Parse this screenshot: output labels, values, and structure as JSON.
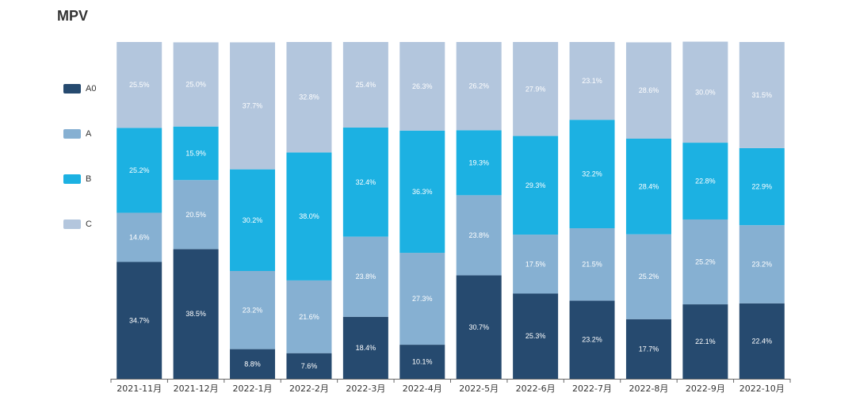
{
  "chart_data": {
    "type": "bar",
    "stacked": true,
    "title": "MPV",
    "categories": [
      "2021-11月",
      "2021-12月",
      "2022-1月",
      "2022-2月",
      "2022-3月",
      "2022-4月",
      "2022-5月",
      "2022-6月",
      "2022-7月",
      "2022-8月",
      "2022-9月",
      "2022-10月"
    ],
    "series": [
      {
        "name": "A0",
        "color": "#264a6f",
        "values": [
          34.7,
          38.5,
          8.8,
          7.6,
          18.4,
          10.1,
          30.7,
          25.3,
          23.2,
          17.7,
          22.1,
          22.4
        ]
      },
      {
        "name": "A",
        "color": "#86b0d2",
        "values": [
          14.6,
          20.5,
          23.2,
          21.6,
          23.8,
          27.3,
          23.8,
          17.5,
          21.5,
          25.2,
          25.2,
          23.2
        ]
      },
      {
        "name": "B",
        "color": "#1cb1e2",
        "values": [
          25.2,
          15.9,
          30.2,
          38.0,
          32.4,
          36.3,
          19.3,
          29.3,
          32.2,
          28.4,
          22.8,
          22.9
        ]
      },
      {
        "name": "C",
        "color": "#b3c6dd",
        "values": [
          25.5,
          25.0,
          37.7,
          32.8,
          25.4,
          26.3,
          26.2,
          27.9,
          23.1,
          28.6,
          30.0,
          31.5
        ]
      }
    ],
    "ylim": [
      0,
      100
    ],
    "legend_position": "left",
    "grid": false
  }
}
